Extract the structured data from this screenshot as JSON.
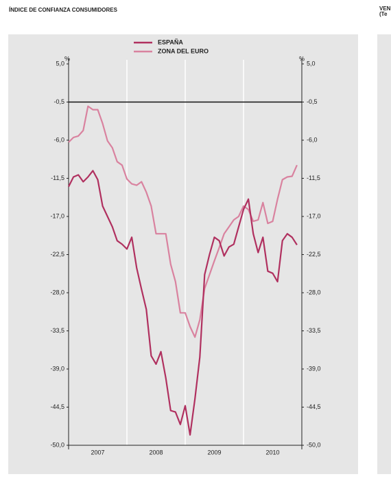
{
  "chart_data": {
    "type": "line",
    "title": "ÍNDICE DE CONFIANZA CONSUMIDORES",
    "side_title": [
      "VEN",
      "(Te"
    ],
    "y_unit": "%",
    "x": [
      2007.0,
      2007.0833,
      2007.1667,
      2007.25,
      2007.3333,
      2007.4167,
      2007.5,
      2007.5833,
      2007.6667,
      2007.75,
      2007.8333,
      2007.9167,
      2008.0,
      2008.0833,
      2008.1667,
      2008.25,
      2008.3333,
      2008.4167,
      2008.5,
      2008.5833,
      2008.6667,
      2008.75,
      2008.8333,
      2008.9167,
      2009.0,
      2009.0833,
      2009.1667,
      2009.25,
      2009.3333,
      2009.4167,
      2009.5,
      2009.5833,
      2009.6667,
      2009.75,
      2009.8333,
      2009.9167,
      2010.0,
      2010.0833,
      2010.1667,
      2010.25,
      2010.3333,
      2010.4167,
      2010.5,
      2010.5833,
      2010.6667,
      2010.75,
      2010.8333,
      2010.9167
    ],
    "series": [
      {
        "name": "ESPAÑA",
        "color": "#b0305f",
        "values": [
          -12.7,
          -11.3,
          -11,
          -12,
          -11.3,
          -10.4,
          -11.7,
          -15.5,
          -17,
          -18.5,
          -20.5,
          -21,
          -21.7,
          -20,
          -24.4,
          -27.5,
          -30.4,
          -37.1,
          -38.3,
          -36.5,
          -40.3,
          -45,
          -45.2,
          -47,
          -44.3,
          -48.5,
          -43.3,
          -37.3,
          -25.4,
          -22.5,
          -20,
          -20.5,
          -22.7,
          -21.4,
          -21,
          -18.5,
          -16,
          -14.5,
          -19.5,
          -22.2,
          -20,
          -24.9,
          -25.2,
          -26.4,
          -20.5,
          -19.5,
          -20,
          -21.1
        ]
      },
      {
        "name": "ZONA DEL EURO",
        "color": "#d9829f",
        "values": [
          -6.3,
          -5.6,
          -5.4,
          -4.6,
          -1.1,
          -1.6,
          -1.6,
          -3.6,
          -6.1,
          -7.1,
          -9.1,
          -9.6,
          -11.6,
          -12.3,
          -12.5,
          -12,
          -13.5,
          -15.5,
          -19.5,
          -19.5,
          -19.5,
          -23.9,
          -26.4,
          -30.9,
          -30.9,
          -32.9,
          -34.4,
          -31.9,
          -27.4,
          -25.4,
          -23.4,
          -21.5,
          -19.5,
          -18.5,
          -17.5,
          -17,
          -15.5,
          -16,
          -17.7,
          -17.5,
          -15,
          -18,
          -17.7,
          -14.5,
          -11.7,
          -11.3,
          -11.2,
          -9.6
        ]
      }
    ],
    "xlim": [
      2007,
      2011
    ],
    "xticks": [
      {
        "value": 2007.5,
        "label": "2007"
      },
      {
        "value": 2008.5,
        "label": "2008"
      },
      {
        "value": 2009.5,
        "label": "2009"
      },
      {
        "value": 2010.5,
        "label": "2010"
      }
    ],
    "xgrid": [
      2008,
      2009,
      2010
    ],
    "ylim": [
      -50,
      5
    ],
    "yticks": [
      {
        "value": 5,
        "label": "5,0"
      },
      {
        "value": -0.5,
        "label": "-0,5"
      },
      {
        "value": -6,
        "label": "-6,0"
      },
      {
        "value": -11.5,
        "label": "-11,5"
      },
      {
        "value": -17,
        "label": "-17,0"
      },
      {
        "value": -22.5,
        "label": "-22,5"
      },
      {
        "value": -28,
        "label": "-28,0"
      },
      {
        "value": -33.5,
        "label": "-33,5"
      },
      {
        "value": -39,
        "label": "-39,0"
      },
      {
        "value": -44.5,
        "label": "-44,5"
      },
      {
        "value": -50,
        "label": "-50,0"
      }
    ],
    "hline": -0.5
  }
}
